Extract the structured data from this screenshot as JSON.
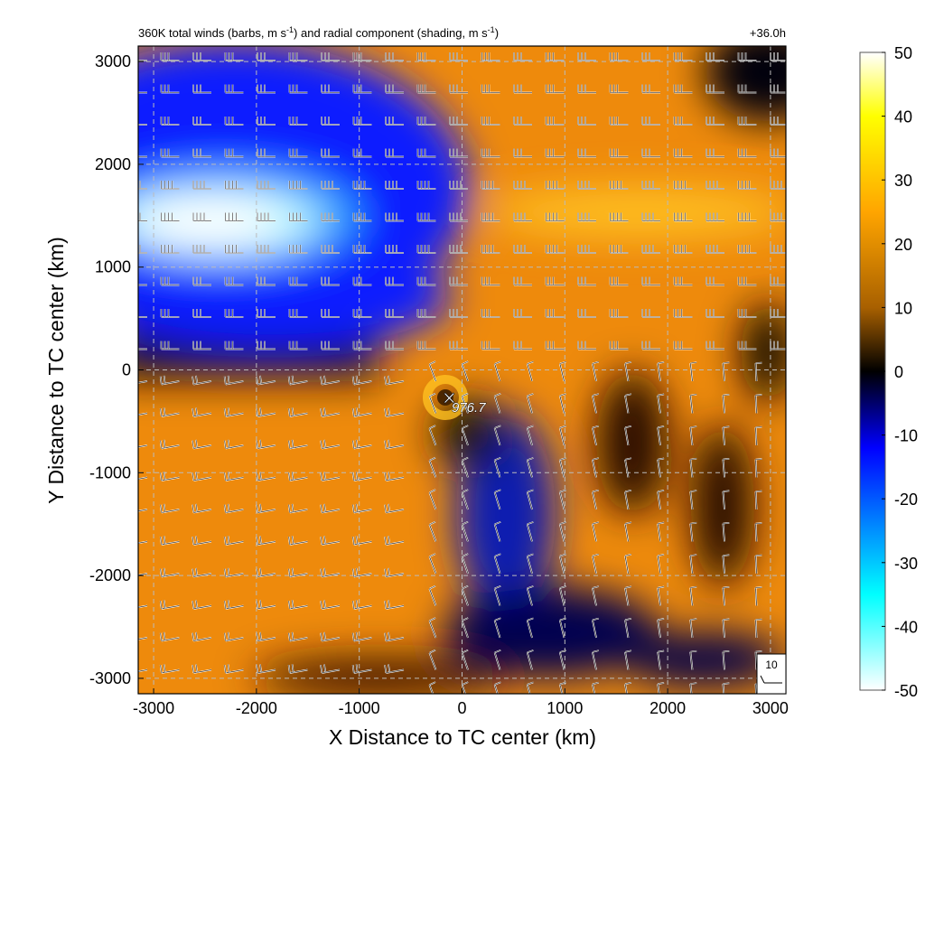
{
  "chart_data": {
    "type": "heatmap",
    "title_main": "360K total winds (barbs, m s",
    "title_sup1": "-1",
    "title_mid": ") and radial component (shading, m s",
    "title_sup2": "-1",
    "title_end": ")",
    "forecast_time": "+36.0h",
    "xlabel": "X Distance to TC center (km)",
    "ylabel": "Y Distance to TC center (km)",
    "xlim": [
      -3150,
      3150
    ],
    "ylim": [
      -3150,
      3150
    ],
    "x_ticks": [
      -3000,
      -2000,
      -1000,
      0,
      1000,
      2000,
      3000
    ],
    "y_ticks": [
      3000,
      2000,
      1000,
      0,
      -1000,
      -2000,
      -3000
    ],
    "grid": true,
    "colorbar": {
      "range": [
        -50,
        50
      ],
      "ticks": [
        50,
        40,
        30,
        20,
        10,
        0,
        -10,
        -20,
        -30,
        -40,
        -50
      ],
      "colors": [
        "#ffffff",
        "#ffff00",
        "#ffa500",
        "#b36b00",
        "#000000",
        "#0000ff",
        "#00ffff",
        "#ffffff"
      ]
    },
    "center_marker": {
      "symbol": "×",
      "label": "976.7",
      "x_km": -150,
      "y_km": -300
    },
    "reference_barb": {
      "label": "10"
    },
    "colors": {
      "blue": "#0a1cff",
      "cyan": "#7ff0ff",
      "orange": "#ee8a0c",
      "dark": "#000000"
    }
  }
}
